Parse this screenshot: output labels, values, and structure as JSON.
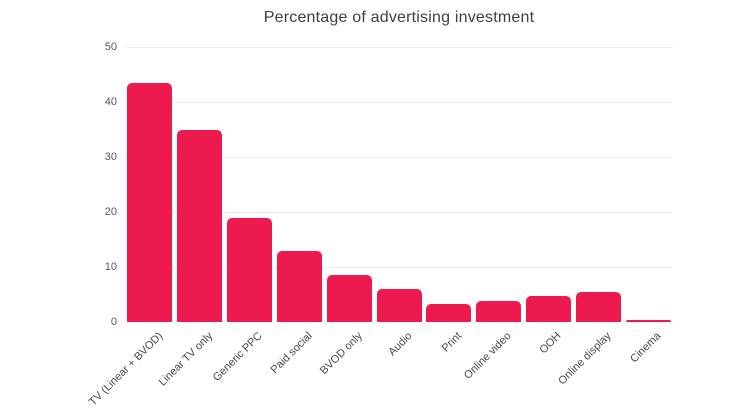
{
  "chart_data": {
    "type": "bar",
    "title": "Percentage of advertising investment",
    "categories": [
      "TV (Linear + BVOD)",
      "Linear TV only",
      "Generic PPC",
      "Paid social",
      "BVOD only",
      "Audio",
      "Print",
      "Online video",
      "OOH",
      "Online display",
      "Cinema"
    ],
    "values": [
      43.5,
      35,
      19,
      13,
      8.5,
      6,
      3.2,
      3.8,
      4.8,
      5.4,
      0.4
    ],
    "xlabel": "",
    "ylabel": "",
    "ylim": [
      0,
      50
    ],
    "yticks": [
      0,
      10,
      20,
      30,
      40,
      50
    ],
    "grid": true,
    "legend_position": "none",
    "colors": {
      "bar": "#ED1A4F",
      "title_text": "#3A3F45",
      "ytick_text": "#56595E",
      "xlabel_text": "#45494F",
      "gridline": "#EDEDED",
      "background": "#FFFFFF"
    }
  }
}
